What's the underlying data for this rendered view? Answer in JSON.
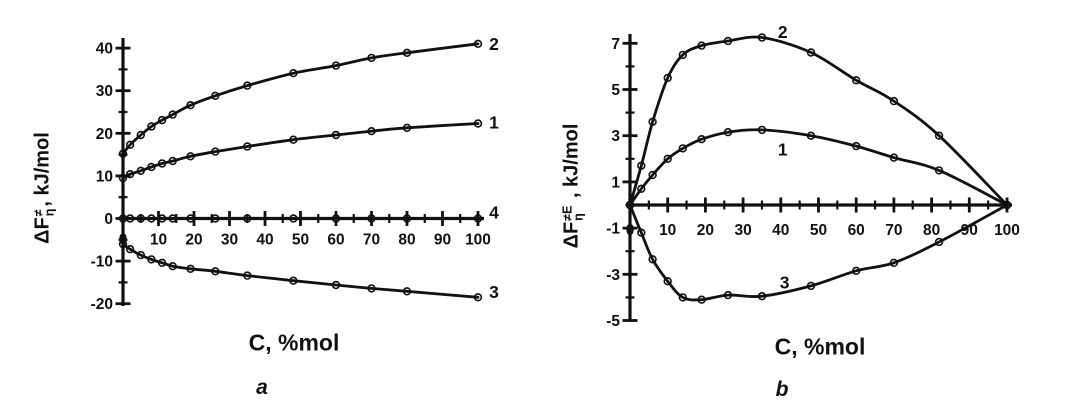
{
  "figure": {
    "background": "#ffffff",
    "ink": "#111111",
    "marker_style": "open-circle",
    "xlabel_shared": "C, %mol"
  },
  "chart_data": [
    {
      "id": "a",
      "type": "line",
      "panel_label": "a",
      "title": "",
      "xlabel": "C, %mol",
      "ylabel": "ΔF≠η, kJ/mol",
      "ylabel_parts": {
        "base": "ΔF",
        "sup": "≠",
        "sub": "η",
        "rest": ", kJ/mol"
      },
      "xlim": [
        0,
        100
      ],
      "ylim": [
        -20,
        42
      ],
      "grid": false,
      "legend_position": "curve-end-numbers",
      "x_axis": {
        "tick_values": [
          0,
          10,
          20,
          30,
          40,
          50,
          60,
          70,
          80,
          90,
          100
        ],
        "minor_ticks": [
          5,
          15,
          25,
          35,
          45,
          55,
          65,
          75,
          85,
          95
        ]
      },
      "y_axis": {
        "tick_values": [
          40,
          30,
          20,
          10,
          0,
          -10,
          -20
        ],
        "minor_ticks": [
          35,
          25,
          15,
          5,
          -5,
          -15
        ]
      },
      "x": [
        0,
        2,
        5,
        8,
        11,
        14,
        19,
        26,
        35,
        48,
        60,
        70,
        80,
        100
      ],
      "series": [
        {
          "name": "curve-2",
          "label": "2",
          "label_at": [
            104.5,
            41.0
          ],
          "values": [
            15.2,
            17.3,
            19.6,
            21.6,
            23.1,
            24.4,
            26.6,
            28.8,
            31.2,
            34.1,
            35.9,
            37.7,
            38.9,
            41.0
          ]
        },
        {
          "name": "curve-1",
          "label": "1",
          "label_at": [
            104.5,
            22.5
          ],
          "values": [
            9.5,
            10.4,
            11.2,
            12.1,
            12.9,
            13.5,
            14.6,
            15.7,
            16.9,
            18.5,
            19.6,
            20.5,
            21.3,
            22.3
          ]
        },
        {
          "name": "curve-4",
          "label": "4",
          "label_at": [
            104.5,
            1.4
          ],
          "values": [
            0,
            0,
            0,
            0,
            0,
            0,
            0,
            0,
            0,
            0,
            0,
            0,
            0,
            0
          ]
        },
        {
          "name": "curve-3",
          "label": "3",
          "label_at": [
            104.5,
            -17.2
          ],
          "values": [
            -6.0,
            -7.2,
            -8.6,
            -9.6,
            -10.4,
            -11.2,
            -11.8,
            -12.4,
            -13.4,
            -14.6,
            -15.6,
            -16.4,
            -17.1,
            -18.5
          ]
        }
      ]
    },
    {
      "id": "b",
      "type": "line",
      "panel_label": "b",
      "title": "",
      "xlabel": "C, %mol",
      "ylabel": "ΔF≠Eη , kJ/mol",
      "ylabel_parts": {
        "base": "ΔF",
        "sup": "≠E",
        "sub": "η",
        "rest": " , kJ/mol"
      },
      "xlim": [
        0,
        100
      ],
      "ylim": [
        -5,
        7.5
      ],
      "grid": false,
      "legend_position": "inline-curve-numbers",
      "x_axis": {
        "tick_values": [
          0,
          10,
          20,
          30,
          40,
          50,
          60,
          70,
          80,
          90,
          100
        ],
        "minor_ticks": [
          5,
          15,
          25,
          35,
          45,
          55,
          65,
          75,
          85,
          95
        ]
      },
      "y_axis": {
        "tick_values": [
          7,
          5,
          3,
          1,
          -1,
          -3,
          -5
        ],
        "minor_ticks": [
          6,
          4,
          2,
          0,
          -2,
          -4
        ]
      },
      "x": [
        0,
        3,
        6,
        10,
        14,
        19,
        26,
        35,
        48,
        60,
        70,
        82,
        100
      ],
      "series": [
        {
          "name": "curve-2",
          "label": "2",
          "label_at": [
            40.5,
            7.5
          ],
          "values": [
            0,
            1.7,
            3.6,
            5.5,
            6.5,
            6.9,
            7.1,
            7.25,
            6.6,
            5.4,
            4.5,
            3.0,
            0
          ]
        },
        {
          "name": "curve-1",
          "label": "1",
          "label_at": [
            40.5,
            2.4
          ],
          "values": [
            0,
            0.7,
            1.3,
            2.0,
            2.45,
            2.85,
            3.15,
            3.25,
            3.0,
            2.55,
            2.05,
            1.5,
            0
          ]
        },
        {
          "name": "curve-3",
          "label": "3",
          "label_at": [
            41.0,
            -3.35
          ],
          "values": [
            0,
            -1.2,
            -2.35,
            -3.3,
            -4.0,
            -4.1,
            -3.9,
            -3.95,
            -3.5,
            -2.85,
            -2.5,
            -1.6,
            0
          ]
        }
      ]
    }
  ]
}
